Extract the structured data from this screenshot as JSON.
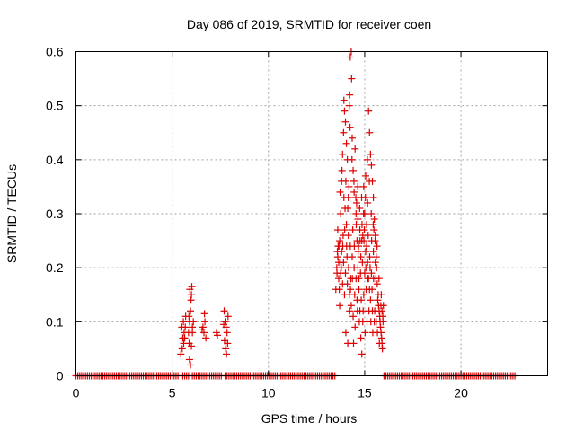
{
  "chart_data": {
    "type": "scatter",
    "title": "Day 086 of 2019, SRMTID for receiver coen",
    "xlabel": "GPS time / hours",
    "ylabel": "SRMTID / TECUs",
    "xlim": [
      0,
      24.5
    ],
    "ylim": [
      0,
      0.6
    ],
    "xticks": [
      "0",
      "5",
      "10",
      "15",
      "20"
    ],
    "xtick_values": [
      0,
      5,
      10,
      15,
      20
    ],
    "yticks": [
      "0",
      "0.1",
      "0.2",
      "0.3",
      "0.4",
      "0.5",
      "0.6"
    ],
    "ytick_values": [
      0,
      0.1,
      0.2,
      0.3,
      0.4,
      0.5,
      0.6
    ],
    "grid": true,
    "marker": "+",
    "color": "#dd0000",
    "series": [
      {
        "name": "SRMTID",
        "points": [
          [
            5.5,
            0.09
          ],
          [
            5.55,
            0.07
          ],
          [
            5.6,
            0.06
          ],
          [
            5.58,
            0.1
          ],
          [
            5.62,
            0.08
          ],
          [
            5.7,
            0.11
          ],
          [
            5.45,
            0.04
          ],
          [
            5.52,
            0.05
          ],
          [
            5.65,
            0.07
          ],
          [
            5.68,
            0.09
          ],
          [
            5.85,
            0.08
          ],
          [
            5.9,
            0.1
          ],
          [
            5.95,
            0.12
          ],
          [
            5.88,
            0.06
          ],
          [
            6.0,
            0.15
          ],
          [
            6.02,
            0.165
          ],
          [
            5.92,
            0.16
          ],
          [
            5.98,
            0.14
          ],
          [
            6.05,
            0.09
          ],
          [
            6.1,
            0.1
          ],
          [
            5.9,
            0.03
          ],
          [
            5.95,
            0.02
          ],
          [
            6.0,
            0.055
          ],
          [
            5.87,
            0.11
          ],
          [
            6.05,
            0.08
          ],
          [
            6.6,
            0.09
          ],
          [
            6.65,
            0.08
          ],
          [
            6.7,
            0.1
          ],
          [
            6.75,
            0.07
          ],
          [
            6.55,
            0.085
          ],
          [
            6.68,
            0.115
          ],
          [
            7.3,
            0.08
          ],
          [
            7.35,
            0.075
          ],
          [
            7.7,
            0.12
          ],
          [
            7.75,
            0.1
          ],
          [
            7.8,
            0.09
          ],
          [
            7.85,
            0.08
          ],
          [
            7.72,
            0.065
          ],
          [
            7.78,
            0.05
          ],
          [
            7.82,
            0.04
          ],
          [
            7.9,
            0.11
          ],
          [
            7.68,
            0.095
          ],
          [
            7.88,
            0.06
          ],
          [
            13.5,
            0.16
          ],
          [
            13.55,
            0.2
          ],
          [
            13.6,
            0.22
          ],
          [
            13.62,
            0.24
          ],
          [
            13.65,
            0.18
          ],
          [
            13.7,
            0.13
          ],
          [
            13.75,
            0.3
          ],
          [
            13.8,
            0.36
          ],
          [
            13.85,
            0.41
          ],
          [
            13.9,
            0.45
          ],
          [
            13.92,
            0.51
          ],
          [
            13.95,
            0.49
          ],
          [
            14.0,
            0.47
          ],
          [
            14.05,
            0.43
          ],
          [
            14.1,
            0.4
          ],
          [
            14.15,
            0.33
          ],
          [
            14.2,
            0.5
          ],
          [
            14.22,
            0.52
          ],
          [
            14.25,
            0.59
          ],
          [
            14.3,
            0.6
          ],
          [
            14.32,
            0.55
          ],
          [
            14.35,
            0.44
          ],
          [
            14.4,
            0.38
          ],
          [
            14.45,
            0.34
          ],
          [
            14.5,
            0.42
          ],
          [
            14.55,
            0.3
          ],
          [
            14.6,
            0.25
          ],
          [
            14.65,
            0.2
          ],
          [
            14.7,
            0.16
          ],
          [
            14.75,
            0.12
          ],
          [
            14.8,
            0.07
          ],
          [
            14.85,
            0.04
          ],
          [
            14.9,
            0.1
          ],
          [
            14.95,
            0.15
          ],
          [
            15.0,
            0.19
          ],
          [
            15.05,
            0.23
          ],
          [
            15.1,
            0.28
          ],
          [
            15.15,
            0.32
          ],
          [
            15.2,
            0.49
          ],
          [
            15.25,
            0.45
          ],
          [
            15.3,
            0.41
          ],
          [
            15.35,
            0.39
          ],
          [
            15.4,
            0.36
          ],
          [
            15.45,
            0.33
          ],
          [
            15.5,
            0.29
          ],
          [
            15.55,
            0.26
          ],
          [
            15.6,
            0.22
          ],
          [
            15.62,
            0.2
          ],
          [
            15.65,
            0.17
          ],
          [
            15.7,
            0.15
          ],
          [
            15.72,
            0.13
          ],
          [
            15.75,
            0.12
          ],
          [
            15.78,
            0.11
          ],
          [
            15.8,
            0.1
          ],
          [
            15.82,
            0.09
          ],
          [
            15.85,
            0.08
          ],
          [
            15.88,
            0.07
          ],
          [
            15.9,
            0.06
          ],
          [
            15.92,
            0.05
          ],
          [
            15.95,
            0.1
          ],
          [
            13.6,
            0.27
          ],
          [
            13.7,
            0.25
          ],
          [
            13.8,
            0.23
          ],
          [
            13.9,
            0.21
          ],
          [
            14.0,
            0.19
          ],
          [
            14.1,
            0.17
          ],
          [
            14.2,
            0.15
          ],
          [
            14.3,
            0.13
          ],
          [
            14.4,
            0.11
          ],
          [
            14.5,
            0.09
          ],
          [
            14.6,
            0.14
          ],
          [
            14.7,
            0.18
          ],
          [
            14.8,
            0.22
          ],
          [
            14.9,
            0.26
          ],
          [
            15.0,
            0.3
          ],
          [
            15.1,
            0.24
          ],
          [
            15.2,
            0.18
          ],
          [
            15.3,
            0.14
          ],
          [
            15.4,
            0.12
          ],
          [
            15.5,
            0.1
          ],
          [
            13.65,
            0.21
          ],
          [
            13.75,
            0.19
          ],
          [
            13.85,
            0.17
          ],
          [
            13.95,
            0.15
          ],
          [
            14.05,
            0.28
          ],
          [
            14.15,
            0.26
          ],
          [
            14.25,
            0.24
          ],
          [
            14.35,
            0.22
          ],
          [
            14.45,
            0.2
          ],
          [
            14.55,
            0.18
          ],
          [
            14.65,
            0.29
          ],
          [
            14.75,
            0.27
          ],
          [
            14.85,
            0.25
          ],
          [
            14.95,
            0.35
          ],
          [
            15.05,
            0.37
          ],
          [
            15.15,
            0.21
          ],
          [
            15.25,
            0.16
          ],
          [
            15.35,
            0.19
          ],
          [
            15.45,
            0.23
          ],
          [
            15.55,
            0.21
          ],
          [
            13.58,
            0.23
          ],
          [
            13.68,
            0.16
          ],
          [
            13.78,
            0.2
          ],
          [
            13.88,
            0.26
          ],
          [
            13.98,
            0.31
          ],
          [
            14.08,
            0.22
          ],
          [
            14.18,
            0.35
          ],
          [
            14.28,
            0.18
          ],
          [
            14.38,
            0.27
          ],
          [
            14.48,
            0.15
          ],
          [
            14.58,
            0.32
          ],
          [
            14.68,
            0.24
          ],
          [
            14.78,
            0.19
          ],
          [
            14.88,
            0.21
          ],
          [
            14.98,
            0.27
          ],
          [
            15.08,
            0.16
          ],
          [
            15.18,
            0.26
          ],
          [
            15.28,
            0.2
          ],
          [
            15.38,
            0.16
          ],
          [
            15.48,
            0.27
          ],
          [
            15.58,
            0.18
          ],
          [
            15.68,
            0.14
          ],
          [
            15.74,
            0.18
          ],
          [
            15.84,
            0.13
          ],
          [
            15.86,
            0.15
          ],
          [
            15.9,
            0.12
          ],
          [
            15.94,
            0.11
          ],
          [
            15.97,
            0.13
          ],
          [
            15.76,
            0.06
          ],
          [
            15.66,
            0.08
          ],
          [
            14.02,
            0.08
          ],
          [
            14.12,
            0.06
          ],
          [
            14.22,
            0.12
          ],
          [
            14.42,
            0.06
          ],
          [
            14.62,
            0.12
          ],
          [
            14.72,
            0.1
          ],
          [
            14.82,
            0.14
          ],
          [
            14.92,
            0.12
          ],
          [
            15.02,
            0.08
          ],
          [
            15.12,
            0.1
          ],
          [
            15.22,
            0.12
          ],
          [
            15.32,
            0.1
          ],
          [
            15.42,
            0.08
          ],
          [
            15.52,
            0.12
          ],
          [
            15.6,
            0.1
          ],
          [
            13.72,
            0.34
          ],
          [
            13.82,
            0.38
          ],
          [
            13.92,
            0.33
          ],
          [
            14.02,
            0.36
          ],
          [
            14.12,
            0.31
          ],
          [
            14.24,
            0.46
          ],
          [
            14.34,
            0.4
          ],
          [
            14.44,
            0.36
          ],
          [
            14.54,
            0.33
          ],
          [
            14.64,
            0.35
          ],
          [
            14.74,
            0.31
          ],
          [
            14.84,
            0.33
          ],
          [
            14.94,
            0.3
          ],
          [
            15.04,
            0.33
          ],
          [
            15.14,
            0.4
          ],
          [
            15.24,
            0.36
          ],
          [
            15.34,
            0.3
          ],
          [
            15.44,
            0.28
          ],
          [
            15.54,
            0.25
          ],
          [
            15.64,
            0.24
          ],
          [
            13.56,
            0.19
          ],
          [
            13.66,
            0.24
          ],
          [
            13.76,
            0.21
          ],
          [
            13.86,
            0.24
          ],
          [
            13.96,
            0.27
          ],
          [
            14.06,
            0.24
          ],
          [
            14.16,
            0.2
          ],
          [
            14.26,
            0.16
          ],
          [
            14.36,
            0.18
          ],
          [
            14.46,
            0.24
          ],
          [
            14.56,
            0.28
          ],
          [
            14.66,
            0.23
          ],
          [
            14.76,
            0.25
          ],
          [
            14.86,
            0.28
          ],
          [
            14.96,
            0.25
          ],
          [
            15.06,
            0.2
          ],
          [
            15.16,
            0.18
          ],
          [
            15.26,
            0.22
          ],
          [
            15.36,
            0.25
          ],
          [
            15.46,
            0.18
          ]
        ],
        "zero_segments": [
          [
            0,
            5.3
          ],
          [
            5.55,
            5.85
          ],
          [
            6.05,
            6.55
          ],
          [
            6.65,
            7.55
          ],
          [
            7.75,
            13.5
          ],
          [
            16.0,
            22.8
          ]
        ]
      }
    ]
  }
}
